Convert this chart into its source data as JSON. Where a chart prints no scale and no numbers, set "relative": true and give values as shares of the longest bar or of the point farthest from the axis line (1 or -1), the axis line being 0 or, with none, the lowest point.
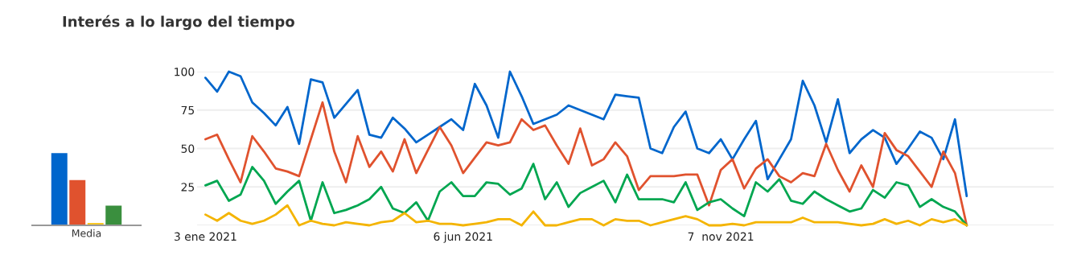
{
  "chart_data": [
    {
      "type": "bar",
      "title": "Interés a lo largo del tiempo",
      "relative": true,
      "categories": [
        "Media"
      ],
      "grid": false,
      "legend": false,
      "series": [
        {
          "color": "#0066cc",
          "values": [
            1
          ]
        },
        {
          "color": "#e0522e",
          "values": [
            0.63
          ]
        },
        {
          "color": "#f9c825",
          "values": [
            0.04
          ]
        },
        {
          "color": "#3a8f3e",
          "values": [
            0.28
          ]
        }
      ]
    },
    {
      "type": "line",
      "grid": "y",
      "legend": false,
      "marker": "none",
      "line_style": "solid",
      "ylim": [
        0,
        100
      ],
      "yticks": [
        {
          "value": 0,
          "label": null
        },
        25,
        50,
        75,
        100
      ],
      "xlim": [
        "2020-12-29",
        "2022-05-25"
      ],
      "x": [
        "2021-01-03",
        "2021-01-10",
        "2021-01-17",
        "2021-01-24",
        "2021-01-31",
        "2021-02-07",
        "2021-02-14",
        "2021-02-21",
        "2021-02-28",
        "2021-03-07",
        "2021-03-14",
        "2021-03-21",
        "2021-03-28",
        "2021-04-04",
        "2021-04-11",
        "2021-04-18",
        "2021-04-25",
        "2021-05-02",
        "2021-05-09",
        "2021-05-16",
        "2021-05-23",
        "2021-05-30",
        "2021-06-06",
        "2021-06-13",
        "2021-06-20",
        "2021-06-27",
        "2021-07-04",
        "2021-07-11",
        "2021-07-18",
        "2021-07-25",
        "2021-08-01",
        "2021-08-08",
        "2021-08-15",
        "2021-08-22",
        "2021-08-29",
        "2021-09-05",
        "2021-09-12",
        "2021-09-19",
        "2021-09-26",
        "2021-10-03",
        "2021-10-10",
        "2021-10-17",
        "2021-10-24",
        "2021-10-31",
        "2021-11-07",
        "2021-11-14",
        "2021-11-21",
        "2021-11-28",
        "2021-12-05",
        "2021-12-12",
        "2021-12-19",
        "2021-12-26",
        "2022-01-02",
        "2022-01-09",
        "2022-01-16",
        "2022-01-23",
        "2022-01-30",
        "2022-02-06",
        "2022-02-13",
        "2022-02-20",
        "2022-02-27",
        "2022-03-06",
        "2022-03-13",
        "2022-03-20",
        "2022-03-27",
        "2022-04-03"
      ],
      "xticks": [
        {
          "value": "2021-01-03",
          "label": "3 ene 2021"
        },
        {
          "value": "2021-06-06",
          "label": "6 jun 2021"
        },
        {
          "value": "2021-11-07",
          "label": "7  nov 2021"
        }
      ],
      "series": [
        {
          "color": "#0066cc",
          "values": [
            96,
            87,
            100,
            97,
            80,
            73,
            65,
            77,
            53,
            95,
            93,
            70,
            79,
            88,
            59,
            57,
            70,
            63,
            54,
            59,
            64,
            69,
            62,
            92,
            78,
            57,
            100,
            84,
            66,
            69,
            72,
            78,
            75,
            72,
            69,
            85,
            84,
            83,
            50,
            47,
            64,
            74,
            50,
            47,
            56,
            43,
            56,
            68,
            30,
            43,
            56,
            94,
            78,
            54,
            82,
            47,
            56,
            62,
            57,
            40,
            50,
            61,
            57,
            43,
            69,
            19
          ]
        },
        {
          "color": "#e0522e",
          "values": [
            56,
            59,
            43,
            28,
            58,
            48,
            37,
            35,
            32,
            56,
            80,
            48,
            28,
            58,
            38,
            48,
            35,
            56,
            34,
            49,
            64,
            52,
            34,
            44,
            54,
            52,
            54,
            69,
            62,
            65,
            52,
            40,
            63,
            39,
            43,
            54,
            45,
            23,
            32,
            32,
            32,
            33,
            33,
            13,
            36,
            43,
            24,
            37,
            43,
            32,
            28,
            34,
            32,
            53,
            36,
            22,
            39,
            25,
            60,
            49,
            45,
            35,
            25,
            48,
            34,
            0
          ]
        },
        {
          "color": "#00a650",
          "values": [
            26,
            29,
            16,
            20,
            38,
            29,
            14,
            22,
            29,
            3,
            28,
            8,
            10,
            13,
            17,
            25,
            11,
            8,
            15,
            3,
            22,
            28,
            19,
            19,
            28,
            27,
            20,
            24,
            40,
            17,
            28,
            12,
            21,
            25,
            29,
            15,
            33,
            17,
            17,
            17,
            15,
            28,
            10,
            15,
            17,
            11,
            6,
            28,
            22,
            30,
            16,
            14,
            22,
            17,
            13,
            9,
            11,
            23,
            18,
            28,
            26,
            12,
            17,
            12,
            9,
            0
          ]
        },
        {
          "color": "#f4b400",
          "values": [
            7,
            3,
            8,
            3,
            1,
            3,
            7,
            13,
            0,
            3,
            1,
            0,
            2,
            1,
            0,
            2,
            3,
            8,
            2,
            3,
            1,
            1,
            0,
            1,
            2,
            4,
            4,
            0,
            9,
            0,
            0,
            2,
            4,
            4,
            0,
            4,
            3,
            3,
            0,
            2,
            4,
            6,
            4,
            0,
            0,
            1,
            0,
            2,
            2,
            2,
            2,
            5,
            2,
            2,
            2,
            1,
            0,
            1,
            4,
            1,
            3,
            0,
            4,
            2,
            4,
            0
          ]
        }
      ]
    }
  ]
}
